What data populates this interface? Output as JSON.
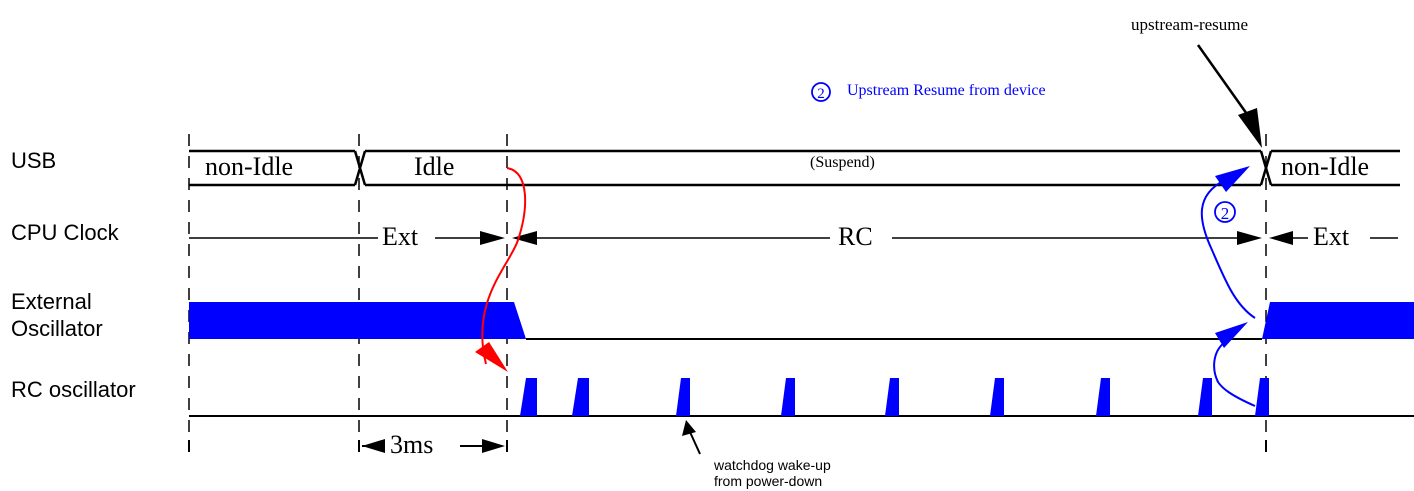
{
  "rows": {
    "usb": "USB",
    "cpu_clock": "CPU Clock",
    "ext_osc_line1": "External",
    "ext_osc_line2": "Oscillator",
    "rc_osc": "RC oscillator"
  },
  "usb_states": {
    "non_idle_1": "non-Idle",
    "idle": "Idle",
    "suspend": "(Suspend)",
    "non_idle_2": "non-Idle"
  },
  "cpu_states": {
    "ext_1": "Ext",
    "rc": "RC",
    "ext_2": "Ext"
  },
  "annotations": {
    "upstream_resume": "upstream-resume",
    "legend_marker": "2",
    "legend_text": "Upstream Resume from device",
    "timer": "3ms",
    "watchdog_line1": "watchdog wake-up",
    "watchdog_line2": "from power-down"
  },
  "colors": {
    "line": "#000000",
    "signal": "#0000ff",
    "sleep_path": "#ff0000",
    "resume_path": "#0000ff"
  }
}
